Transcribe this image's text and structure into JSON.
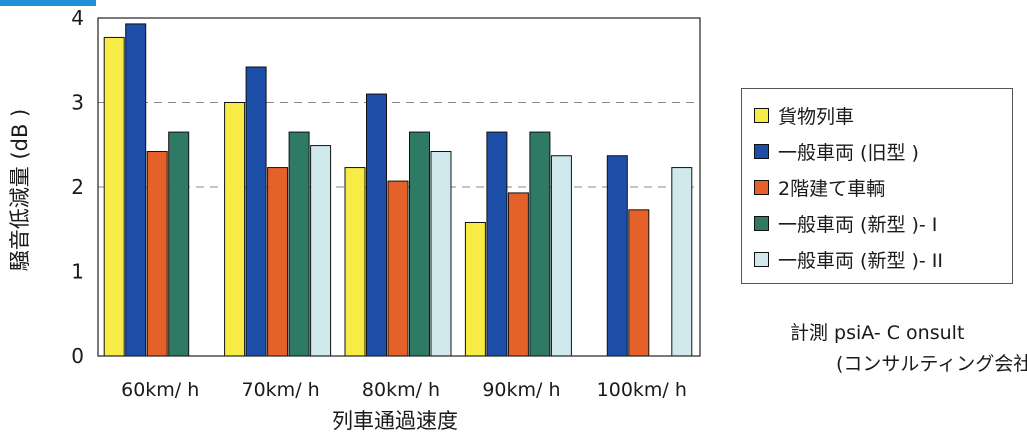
{
  "chart_data": {
    "type": "bar",
    "xlabel": "列車通過速度",
    "ylabel": "騒音低減量 (dB )",
    "ylim": [
      0,
      4
    ],
    "yticks": [
      0,
      1,
      2,
      3,
      4
    ],
    "categories": [
      "60km/ h",
      "70km/ h",
      "80km/ h",
      "90km/ h",
      "100km/ h"
    ],
    "gridlines": "dashed at 2 and 3",
    "legend_position": "right",
    "series": [
      {
        "name": "貨物列車",
        "color": "#f7ec45",
        "values": [
          3.77,
          3.0,
          2.23,
          1.58,
          null
        ]
      },
      {
        "name": "一般車両 (旧型 )",
        "color": "#1d4fa8",
        "values": [
          3.93,
          3.42,
          3.1,
          2.65,
          2.37
        ]
      },
      {
        "name": "2階建て車輌",
        "color": "#e4612a",
        "values": [
          2.42,
          2.23,
          2.07,
          1.93,
          1.73
        ]
      },
      {
        "name": "一般車両 (新型 )- I",
        "color": "#2f7a64",
        "values": [
          2.65,
          2.65,
          2.65,
          2.65,
          null
        ]
      },
      {
        "name": "一般車両 (新型 )- II",
        "color": "#cfe9ec",
        "values": [
          null,
          2.49,
          2.42,
          2.37,
          2.23
        ]
      }
    ]
  },
  "credit": {
    "line1": "計測 psiA- C onsult",
    "line2": "(コンサルティング会社 )"
  }
}
